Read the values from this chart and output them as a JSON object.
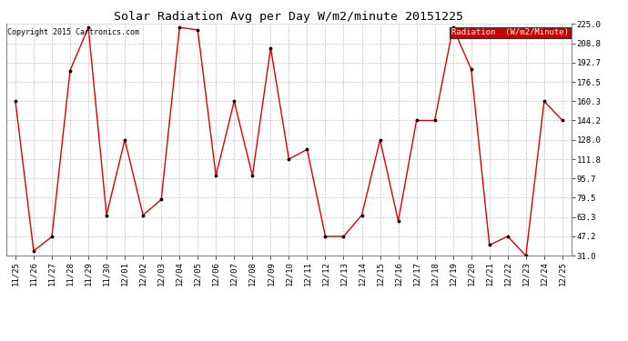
{
  "title": "Solar Radiation Avg per Day W/m2/minute 20151225",
  "copyright": "Copyright 2015 Cartronics.com",
  "legend_label": "Radiation  (W/m2/Minute)",
  "legend_bg": "#cc0000",
  "legend_fg": "#ffffff",
  "x_labels": [
    "11/25",
    "11/26",
    "11/27",
    "11/28",
    "11/29",
    "11/30",
    "12/01",
    "12/02",
    "12/03",
    "12/04",
    "12/05",
    "12/06",
    "12/07",
    "12/08",
    "12/09",
    "12/10",
    "12/11",
    "12/12",
    "12/13",
    "12/14",
    "12/15",
    "12/16",
    "12/17",
    "12/18",
    "12/19",
    "12/20",
    "12/21",
    "12/22",
    "12/23",
    "12/24",
    "12/25"
  ],
  "y_values": [
    160.3,
    35.0,
    47.0,
    186.0,
    222.0,
    65.0,
    128.0,
    65.0,
    78.0,
    222.0,
    220.0,
    98.0,
    160.3,
    98.0,
    205.0,
    111.8,
    120.0,
    47.2,
    47.2,
    65.0,
    128.0,
    60.0,
    144.2,
    144.2,
    222.0,
    187.0,
    40.0,
    47.2,
    31.0,
    160.3,
    144.2
  ],
  "ylim_min": 31.0,
  "ylim_max": 225.0,
  "yticks": [
    31.0,
    47.2,
    63.3,
    79.5,
    95.7,
    111.8,
    128.0,
    144.2,
    160.3,
    176.5,
    192.7,
    208.8,
    225.0
  ],
  "ytick_labels": [
    "31.0",
    "47.2",
    "63.3",
    "79.5",
    "95.7",
    "111.8",
    "128.0",
    "144.2",
    "160.3",
    "176.5",
    "192.7",
    "208.8",
    "225.0"
  ],
  "line_color": "#dd0000",
  "marker_color": "#000000",
  "grid_color": "#bbbbbb",
  "bg_color": "#ffffff",
  "title_fontsize": 9.5,
  "tick_fontsize": 6.5,
  "copyright_fontsize": 6.0,
  "legend_fontsize": 6.5
}
